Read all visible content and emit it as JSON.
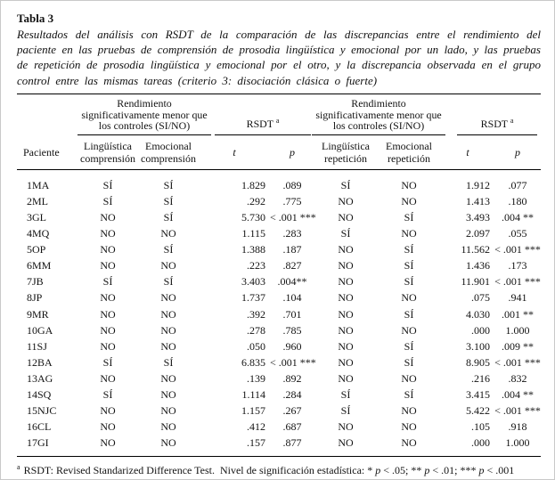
{
  "page": {
    "title": "Tabla 3",
    "caption": "Resultados del análisis con RSDT de la comparación de las discrepancias entre el rendimiento del paciente en las pruebas de comprensión de prosodia lingüística y emocional por un lado, y las pruebas de repetición de prosodia lingüística y emocional por el otro, y la discrepancia observada en el grupo control entre las mismas tareas (criterio 3: disociación clásica o fuerte)"
  },
  "table": {
    "group_performance": "Rendimiento significativamente menor que los controles (SI/NO)",
    "rsdt": "RSDT",
    "rsdt_marker": "a",
    "subheaders": {
      "paciente": "Paciente",
      "linguistica": "Lingüística",
      "emocional": "Emocional",
      "comprension": "comprensión",
      "repeticion": "repetición",
      "t": "t",
      "p": "p"
    },
    "rows": [
      [
        "1MA",
        "SÍ",
        "SÍ",
        "1.829",
        ".089",
        "SÍ",
        "NO",
        "1.912",
        ".077"
      ],
      [
        "2ML",
        "SÍ",
        "SÍ",
        ".292",
        ".775",
        "NO",
        "NO",
        "1.413",
        ".180"
      ],
      [
        "3GL",
        "NO",
        "SÍ",
        "5.730",
        "< .001 ***",
        "NO",
        "SÍ",
        "3.493",
        ".004 **"
      ],
      [
        "4MQ",
        "NO",
        "NO",
        "1.115",
        ".283",
        "SÍ",
        "NO",
        "2.097",
        ".055"
      ],
      [
        "5OP",
        "NO",
        "SÍ",
        "1.388",
        ".187",
        "NO",
        "SÍ",
        "11.562",
        "< .001 ***"
      ],
      [
        "6MM",
        "NO",
        "NO",
        ".223",
        ".827",
        "NO",
        "SÍ",
        "1.436",
        ".173"
      ],
      [
        "7JB",
        "SÍ",
        "SÍ",
        "3.403",
        ".004**",
        "NO",
        "SÍ",
        "11.901",
        "< .001 ***"
      ],
      [
        "8JP",
        "NO",
        "NO",
        "1.737",
        ".104",
        "NO",
        "NO",
        ".075",
        ".941"
      ],
      [
        "9MR",
        "NO",
        "NO",
        ".392",
        ".701",
        "NO",
        "SÍ",
        "4.030",
        ".001 **"
      ],
      [
        "10GA",
        "NO",
        "NO",
        ".278",
        ".785",
        "NO",
        "NO",
        ".000",
        "1.000"
      ],
      [
        "11SJ",
        "NO",
        "NO",
        ".050",
        ".960",
        "NO",
        "SÍ",
        "3.100",
        ".009 **"
      ],
      [
        "12BA",
        "SÍ",
        "SÍ",
        "6.835",
        "< .001 ***",
        "NO",
        "SÍ",
        "8.905",
        "< .001 ***"
      ],
      [
        "13AG",
        "NO",
        "NO",
        ".139",
        ".892",
        "NO",
        "NO",
        ".216",
        ".832"
      ],
      [
        "14SQ",
        "SÍ",
        "NO",
        "1.114",
        ".284",
        "SÍ",
        "SÍ",
        "3.415",
        ".004 **"
      ],
      [
        "15NJC",
        "NO",
        "NO",
        "1.157",
        ".267",
        "SÍ",
        "NO",
        "5.422",
        "< .001 ***"
      ],
      [
        "16CL",
        "NO",
        "NO",
        ".412",
        ".687",
        "NO",
        "NO",
        ".105",
        ".918"
      ],
      [
        "17GI",
        "NO",
        "NO",
        ".157",
        ".877",
        "NO",
        "NO",
        ".000",
        "1.000"
      ]
    ]
  },
  "footnote": {
    "marker": "a",
    "part1": " RSDT: Revised Standarized Difference Test.  Nivel de significación estadística: * ",
    "p": "p",
    "part2": " < .05; ** ",
    "part3": " < .01; *** ",
    "part4": " < .001"
  }
}
